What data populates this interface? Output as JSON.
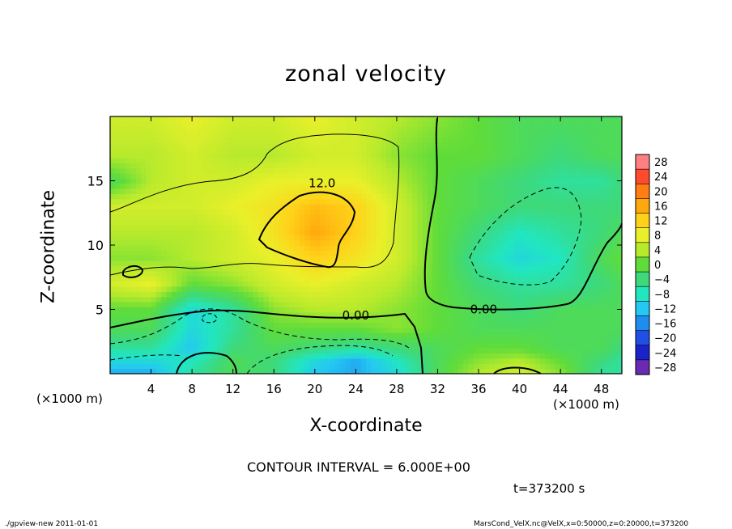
{
  "chart_data": {
    "type": "heatmap",
    "title": "zonal velocity",
    "xlabel": "X-coordinate",
    "ylabel": "Z-coordinate",
    "x_unit_left": "(×1000 m)",
    "x_unit_right": "(×1000 m)",
    "xlim": [
      0,
      50
    ],
    "ylim": [
      0,
      20
    ],
    "x_ticks": [
      4,
      8,
      12,
      16,
      20,
      24,
      28,
      32,
      36,
      40,
      44,
      48
    ],
    "y_ticks": [
      5,
      10,
      15
    ],
    "colorbar": {
      "levels": [
        28,
        24,
        20,
        16,
        12,
        8,
        4,
        0,
        -4,
        -8,
        -12,
        -16,
        -20,
        -24,
        -28
      ],
      "labels": [
        "28",
        "24",
        "20",
        "16",
        "12",
        "8",
        "4",
        "0",
        "−4",
        "−8",
        "−12",
        "−16",
        "−20",
        "−24",
        "−28"
      ],
      "colors": [
        "#ff8080",
        "#ff4a2e",
        "#ff7d12",
        "#ffa80c",
        "#ffd21a",
        "#e9f02a",
        "#b8ea2c",
        "#5fdc3a",
        "#3ed97a",
        "#21e6c0",
        "#24c8f2",
        "#1f8df0",
        "#1f4fe6",
        "#1a22c8",
        "#6a2ab2"
      ]
    },
    "contour_labels": [
      "12.0",
      "0.00",
      "0.00"
    ],
    "value_grid_x": [
      0,
      4,
      8,
      12,
      16,
      20,
      24,
      28,
      32,
      36,
      40,
      44,
      48,
      50
    ],
    "value_grid_z": [
      0,
      1,
      2,
      3.5,
      5,
      7,
      9,
      11,
      13,
      15,
      17,
      20
    ],
    "values": [
      [
        -14,
        -14,
        -6,
        -2,
        -4,
        -12,
        -14,
        -10,
        -2,
        4,
        6,
        2,
        -6,
        -6
      ],
      [
        -10,
        -10,
        -8,
        -2,
        -4,
        -10,
        -14,
        -8,
        -2,
        2,
        4,
        0,
        -4,
        -6
      ],
      [
        -6,
        -6,
        -12,
        -4,
        -2,
        -4,
        -6,
        -4,
        -2,
        0,
        0,
        -2,
        -2,
        -4
      ],
      [
        -2,
        -2,
        -10,
        -6,
        0,
        0,
        0,
        2,
        0,
        -2,
        -2,
        -2,
        -2,
        -2
      ],
      [
        0,
        0,
        -10,
        -6,
        2,
        4,
        4,
        2,
        0,
        -2,
        -4,
        -2,
        -2,
        -2
      ],
      [
        6,
        8,
        0,
        2,
        6,
        8,
        6,
        4,
        0,
        -4,
        -6,
        -6,
        -4,
        -2
      ],
      [
        2,
        2,
        4,
        6,
        8,
        12,
        10,
        6,
        0,
        -6,
        -10,
        -8,
        -2,
        0
      ],
      [
        4,
        4,
        4,
        6,
        10,
        16,
        12,
        6,
        0,
        -4,
        -8,
        -6,
        -4,
        -2
      ],
      [
        6,
        6,
        6,
        8,
        10,
        14,
        12,
        6,
        0,
        -2,
        -4,
        -4,
        -4,
        -4
      ],
      [
        -2,
        4,
        6,
        6,
        8,
        8,
        8,
        4,
        0,
        -2,
        -4,
        -6,
        -6,
        -4
      ],
      [
        4,
        4,
        6,
        4,
        4,
        6,
        6,
        2,
        0,
        0,
        -2,
        -4,
        -2,
        -2
      ],
      [
        6,
        6,
        8,
        6,
        6,
        8,
        6,
        4,
        2,
        0,
        -2,
        -2,
        -2,
        -2
      ]
    ]
  },
  "text": {
    "contour_interval": "CONTOUR INTERVAL = 6.000E+00",
    "time": "t=373200 s",
    "footer_left": "./gpview-new  2011-01-01",
    "footer_right": "MarsCond_VelX.nc@VelX,x=0:50000,z=0:20000,t=373200"
  }
}
